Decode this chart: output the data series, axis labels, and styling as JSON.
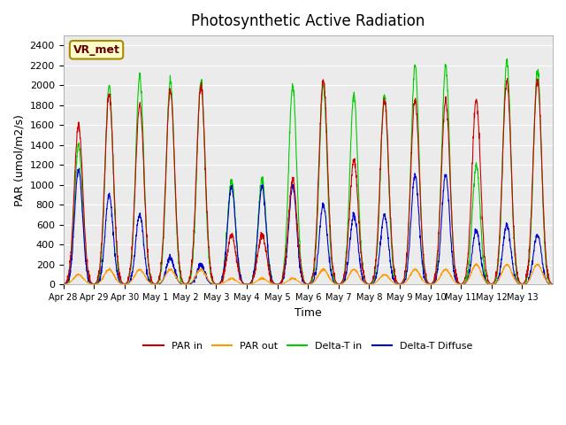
{
  "title": "Photosynthetic Active Radiation",
  "ylabel": "PAR (umol/m2/s)",
  "xlabel": "Time",
  "annotation": "VR_met",
  "ylim": [
    0,
    2500
  ],
  "plot_bg": "#ebebeb",
  "colors": {
    "PAR_in": "#cc0000",
    "PAR_out": "#ff9900",
    "Delta_T_in": "#00cc00",
    "Delta_T_Diffuse": "#0000cc"
  },
  "legend": [
    "PAR in",
    "PAR out",
    "Delta-T in",
    "Delta-T Diffuse"
  ],
  "xtick_labels": [
    "Apr 28",
    "Apr 29",
    "Apr 30",
    "May 1",
    "May 2",
    "May 3",
    "May 4",
    "May 5",
    "May 6",
    "May 7",
    "May 8",
    "May 9",
    "May 10",
    "May 11",
    "May 12",
    "May 13"
  ],
  "num_days": 16,
  "pts_per_day": 144,
  "par_in_amps": [
    1600,
    1900,
    1800,
    1950,
    2000,
    500,
    500,
    1050,
    2050,
    1250,
    1850,
    1850,
    1850,
    1850,
    2050,
    2050
  ],
  "par_out_amps": [
    100,
    150,
    150,
    150,
    150,
    60,
    60,
    60,
    150,
    150,
    100,
    150,
    150,
    200,
    200,
    200
  ],
  "delta_t_in_amps": [
    1400,
    2000,
    2100,
    2050,
    2050,
    1050,
    1050,
    2000,
    2000,
    1900,
    1900,
    2200,
    2200,
    1200,
    2250,
    2150
  ],
  "delta_t_diff_amps": [
    1150,
    900,
    700,
    270,
    200,
    980,
    980,
    980,
    800,
    700,
    700,
    1100,
    1100,
    550,
    600,
    500
  ],
  "yticks": [
    0,
    200,
    400,
    600,
    800,
    1000,
    1200,
    1400,
    1600,
    1800,
    2000,
    2200,
    2400
  ]
}
